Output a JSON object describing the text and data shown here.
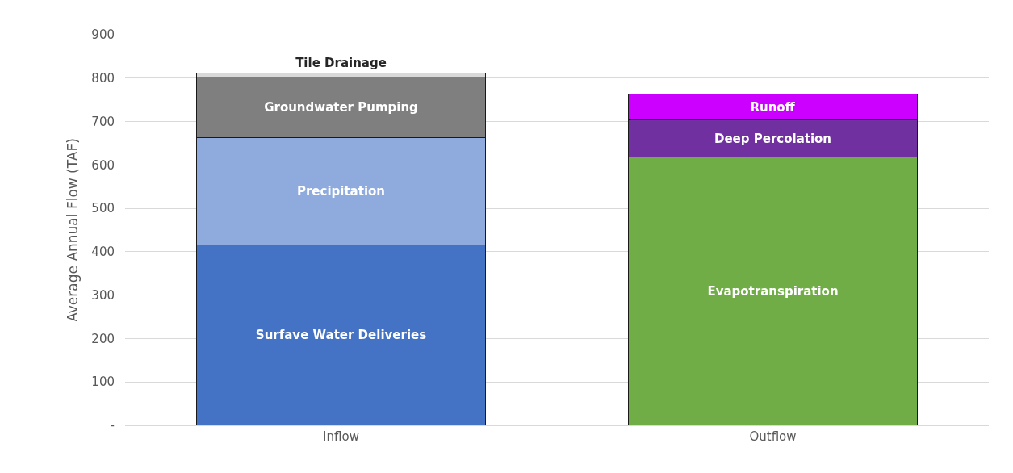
{
  "chart_data": {
    "type": "bar",
    "stacked": true,
    "ylabel": "Average Annual Flow (TAF)",
    "categories": [
      "Inflow",
      "Outflow"
    ],
    "series": [
      {
        "name": "Surfave Water Deliveries",
        "color": "#4472c4",
        "values": [
          416,
          null
        ]
      },
      {
        "name": "Precipitation",
        "color": "#8faadc",
        "values": [
          246,
          null
        ]
      },
      {
        "name": "Groundwater Pumping",
        "color": "#7f7f7f",
        "values": [
          140,
          null
        ]
      },
      {
        "name": "Tile Drainage",
        "color": "#d9d9d9",
        "values": [
          10,
          null
        ]
      },
      {
        "name": "Evapotranspiration",
        "color": "#70ad47",
        "values": [
          null,
          618
        ]
      },
      {
        "name": "Deep Percolation",
        "color": "#7030a0",
        "values": [
          null,
          85
        ]
      },
      {
        "name": "Runoff",
        "color": "#cc00ff",
        "values": [
          null,
          60
        ]
      }
    ],
    "ylim": [
      0,
      900
    ],
    "yticks": [
      {
        "value": 0,
        "label": "-"
      },
      100,
      200,
      300,
      400,
      500,
      600,
      700,
      800,
      900
    ],
    "grid": "y",
    "legend": false
  }
}
